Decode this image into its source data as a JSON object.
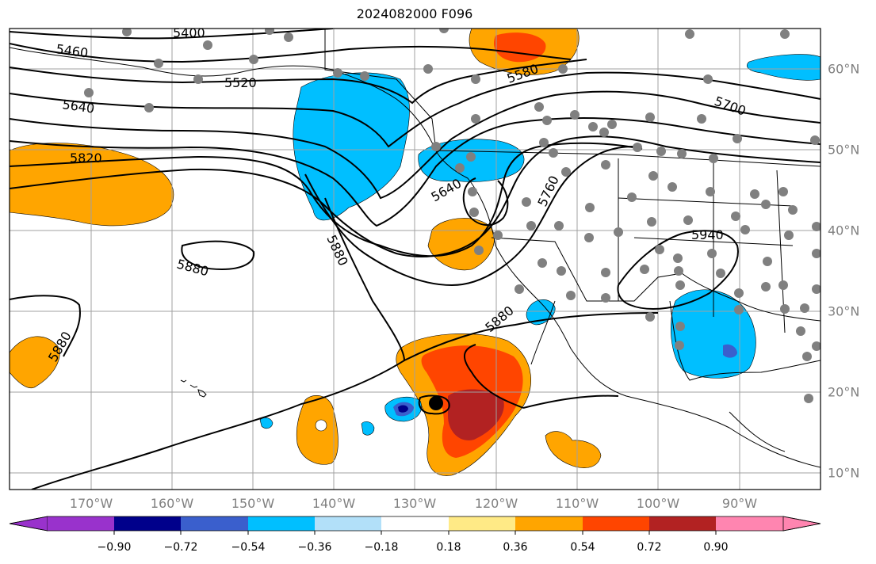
{
  "title": "2024082000 F096",
  "axes": {
    "lon_labels": [
      "170°W",
      "160°W",
      "150°W",
      "140°W",
      "130°W",
      "120°W",
      "110°W",
      "100°W",
      "90°W"
    ],
    "lat_labels": [
      "60°N",
      "50°N",
      "40°N",
      "30°N",
      "20°N",
      "10°N"
    ],
    "lon_range": [
      -180,
      -80
    ],
    "lat_range": [
      8,
      64
    ],
    "grid": true,
    "gridline_color": "#a0a0a0",
    "label_color": "#808080"
  },
  "contours": {
    "field": "geopotential height",
    "color": "#000000",
    "labels": [
      "5400",
      "5460",
      "5520",
      "5580",
      "5640",
      "5700",
      "5760",
      "5820",
      "5880",
      "5940"
    ]
  },
  "colorbar": {
    "ticks": [
      "−0.90",
      "−0.72",
      "−0.54",
      "−0.36",
      "−0.18",
      "0.18",
      "0.36",
      "0.54",
      "0.72",
      "0.90"
    ],
    "colors": [
      "#9932cc",
      "#00008b",
      "#3a5fcd",
      "#00bfff",
      "#b2e0f9",
      "#ffffff",
      "#ffea86",
      "#ffa500",
      "#ff4500",
      "#b22222",
      "#ff85b0"
    ]
  },
  "markers": {
    "station_color": "#808080",
    "center_color": "#000000"
  }
}
